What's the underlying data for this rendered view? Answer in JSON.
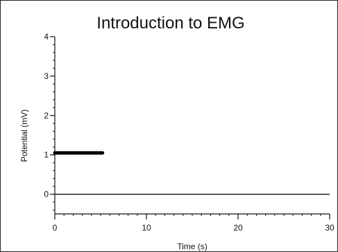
{
  "window": {
    "background": "#ffffff",
    "frame_color": "#222222"
  },
  "chart_data": {
    "type": "line",
    "title": "Introduction to EMG",
    "xlabel": "Time (s)",
    "ylabel": "Potential (mV)",
    "xlim": [
      0,
      30
    ],
    "ylim": [
      -0.5,
      4
    ],
    "x_ticks": [
      0,
      10,
      20,
      30
    ],
    "x_tick_labels": [
      "0",
      "10",
      "20",
      "30"
    ],
    "y_ticks": [
      0,
      1,
      2,
      3,
      4
    ],
    "y_tick_labels": [
      "0",
      "1",
      "2",
      "3",
      "4"
    ],
    "x_minor_step": 1,
    "y_minor_step": 0.2,
    "grid": false,
    "baseline": {
      "y": 0,
      "x_range": [
        0,
        30
      ]
    },
    "series": [
      {
        "x": [
          0,
          5.2
        ],
        "y": [
          1.05,
          1.05
        ],
        "color": "#000000"
      }
    ]
  }
}
